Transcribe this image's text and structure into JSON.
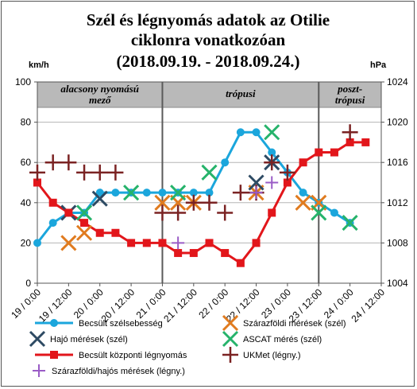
{
  "chart_data": {
    "type": "line",
    "title_lines": [
      "Szél és légnyomás adatok az Otilie",
      "ciklonra vonatkozóan",
      "(2018.09.19. - 2018.09.24.)"
    ],
    "left_unit": "km/h",
    "right_unit": "hPa",
    "left_axis": {
      "min": 0,
      "max": 100,
      "ticks": [
        0,
        20,
        40,
        60,
        80,
        100
      ]
    },
    "right_axis": {
      "min": 1004,
      "max": 1024,
      "ticks": [
        1004,
        1008,
        1012,
        1016,
        1020,
        1024
      ]
    },
    "x_axis": {
      "min": 0,
      "max": 132,
      "tick_labels": [
        "19 / 0:00",
        "19 / 12:00",
        "20 / 0:00",
        "20 / 12:00",
        "21 / 0:00",
        "21 / 12:00",
        "22 / 0:00",
        "22 / 12:00",
        "23 / 0:00",
        "23 / 12:00",
        "24 / 0:00",
        "24 / 12:00"
      ],
      "tick_hours": [
        0,
        12,
        24,
        36,
        48,
        60,
        72,
        84,
        96,
        108,
        120,
        132
      ],
      "unit": "hours since 19/0:00"
    },
    "phases": [
      {
        "label": "alacsony nyomású mező",
        "label_lines": [
          "alacsony nyomású",
          "mező"
        ],
        "start": 0,
        "end": 48
      },
      {
        "label": "trópusi",
        "label_lines": [
          "trópusi"
        ],
        "start": 48,
        "end": 108
      },
      {
        "label": "poszt-trópusi",
        "label_lines": [
          "poszt-",
          "trópusi"
        ],
        "start": 108,
        "end": 132
      }
    ],
    "series": [
      {
        "name": "Becsült szélsebesség",
        "axis": "left",
        "style": "line-circle",
        "color": "#1ba6dc",
        "x": [
          0,
          6,
          12,
          18,
          24,
          30,
          36,
          42,
          48,
          54,
          60,
          66,
          72,
          78,
          84,
          90,
          96,
          102,
          108,
          114,
          120
        ],
        "y": [
          20,
          30,
          35,
          35,
          45,
          45,
          45,
          45,
          45,
          45,
          45,
          45,
          60,
          75,
          75,
          65,
          55,
          45,
          40,
          35,
          30
        ]
      },
      {
        "name": "Szárazföldi mérések (szél)",
        "axis": "left",
        "style": "x",
        "color": "#e07b1f",
        "x": [
          12,
          18,
          48,
          54,
          60,
          84,
          102,
          108
        ],
        "y": [
          20,
          25,
          40,
          40,
          40,
          45,
          40,
          40
        ]
      },
      {
        "name": "Hajó mérések (szél)",
        "axis": "left",
        "style": "x",
        "color": "#2d4a63",
        "x": [
          12,
          24,
          84,
          90
        ],
        "y": [
          35,
          42,
          50,
          60
        ]
      },
      {
        "name": "ASCAT mérés (szél)",
        "axis": "left",
        "style": "x",
        "color": "#26b36b",
        "x": [
          18,
          36,
          54,
          66,
          90,
          108,
          120
        ],
        "y": [
          35,
          45,
          45,
          55,
          75,
          35,
          30
        ]
      },
      {
        "name": "Becsült központi légnyomás",
        "axis": "right",
        "style": "line-square",
        "color": "#e2161b",
        "x": [
          0,
          6,
          12,
          18,
          24,
          30,
          36,
          42,
          48,
          54,
          60,
          66,
          72,
          78,
          84,
          90,
          96,
          102,
          108,
          114,
          120,
          126
        ],
        "y": [
          1014,
          1012,
          1011,
          1010,
          1009,
          1009,
          1008,
          1008,
          1008,
          1007,
          1007,
          1008,
          1007,
          1006,
          1008,
          1011,
          1014,
          1016,
          1017,
          1017,
          1018,
          1018
        ]
      },
      {
        "name": "UKMet (légny.)",
        "axis": "right",
        "style": "plus",
        "color": "#7b2323",
        "x": [
          0,
          6,
          12,
          18,
          24,
          30,
          48,
          54,
          60,
          66,
          72,
          78,
          84,
          90,
          96,
          120
        ],
        "y": [
          1015,
          1016,
          1016,
          1015,
          1015,
          1015,
          1011,
          1011,
          1012,
          1012,
          1011,
          1013,
          1013,
          1016,
          1015,
          1019
        ]
      },
      {
        "name": "Szárazföldi/hajós mérések (légny.)",
        "axis": "right",
        "style": "plus-small",
        "color": "#9a5cc6",
        "x": [
          54,
          84,
          90
        ],
        "y": [
          1008,
          1013,
          1014
        ]
      }
    ],
    "legend_order": [
      0,
      1,
      2,
      3,
      4,
      5,
      6
    ],
    "grid": {
      "horizontal": true,
      "vertical_phase_lines": [
        48,
        108
      ]
    }
  }
}
